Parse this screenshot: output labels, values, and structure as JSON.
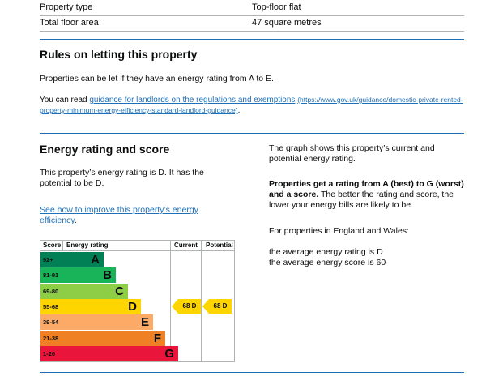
{
  "property_rows": [
    {
      "label": "Property type",
      "value": "Top-floor flat"
    },
    {
      "label": "Total floor area",
      "value": "47 square metres"
    }
  ],
  "letting": {
    "heading": "Rules on letting this property",
    "intro": "Properties can be let if they have an energy rating from A to E.",
    "guidance_prefix": "You can read ",
    "guidance_link": "guidance for landlords on the regulations and exemptions",
    "guidance_url_text": "(https://www.gov.uk/guidance/domestic-private-rented-property-minimum-energy-efficiency-standard-landlord-guidance)",
    "guidance_suffix": "."
  },
  "energy": {
    "heading": "Energy rating and score",
    "summary": "This property’s energy rating is D. It has the potential to be D.",
    "improve_link": "See how to improve this property’s energy efficiency",
    "improve_suffix": "."
  },
  "epc_chart": {
    "header_score": "Score",
    "header_rating": "Energy rating",
    "header_current": "Current",
    "header_potential": "Potential",
    "bands": [
      {
        "score": "92+",
        "letter": "A",
        "color": "#008054",
        "fraction": 0.235
      },
      {
        "score": "81-91",
        "letter": "B",
        "color": "#19b459",
        "fraction": 0.35
      },
      {
        "score": "69-80",
        "letter": "C",
        "color": "#8dce46",
        "fraction": 0.465
      },
      {
        "score": "55-68",
        "letter": "D",
        "color": "#ffd500",
        "fraction": 0.58
      },
      {
        "score": "39-54",
        "letter": "E",
        "color": "#fcaa65",
        "fraction": 0.695
      },
      {
        "score": "21-38",
        "letter": "F",
        "color": "#ef8023",
        "fraction": 0.81
      },
      {
        "score": "1-20",
        "letter": "G",
        "color": "#e9153b",
        "fraction": 0.93
      }
    ],
    "current": {
      "label": "68  D",
      "band": "D"
    },
    "potential": {
      "label": "68  D",
      "band": "D"
    }
  },
  "explain": {
    "graph_text": "The graph shows this property’s current and potential energy rating.",
    "bold_text": "Properties get a rating from A (best) to G (worst) and a score.",
    "rest_text": " The better the rating and score, the lower your energy bills are likely to be.",
    "region_text": "For properties in England and Wales:",
    "avg_rating": "the average energy rating is D",
    "avg_score": "the average energy score is 60"
  }
}
